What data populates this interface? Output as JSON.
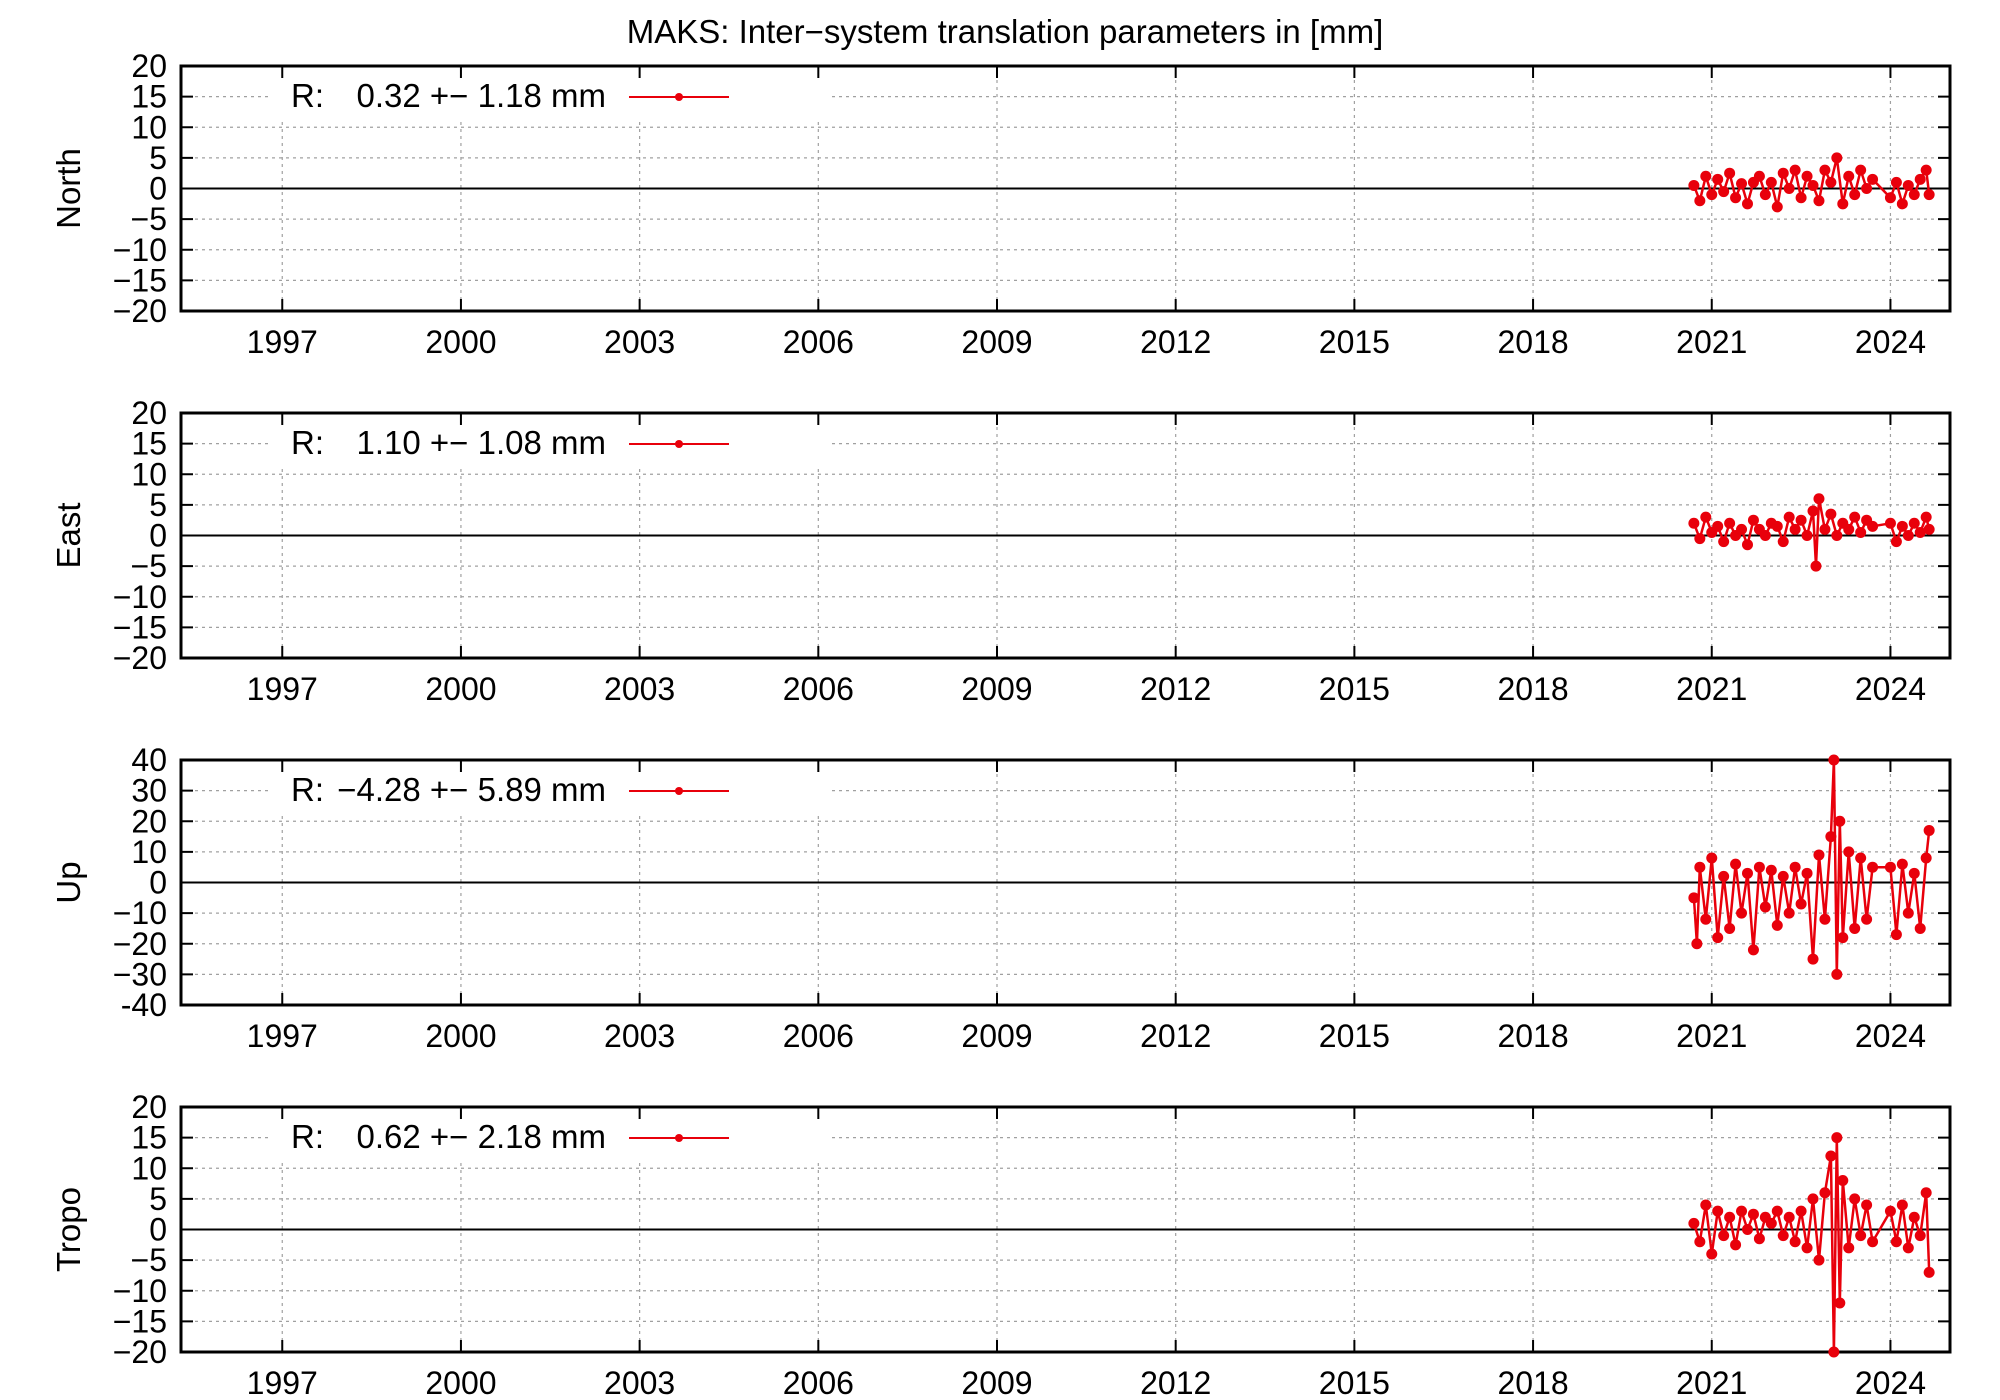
{
  "chart_data": {
    "type": "line",
    "title": "MAKS: Inter−system translation parameters in [mm]",
    "xlim": [
      1995.3,
      2025.0
    ],
    "xticks": [
      1997,
      2000,
      2003,
      2006,
      2009,
      2012,
      2015,
      2018,
      2021,
      2024
    ],
    "xtick_labels": [
      "1997",
      "2000",
      "2003",
      "2006",
      "2009",
      "2012",
      "2015",
      "2018",
      "2021",
      "2024"
    ],
    "series_color": "#e8000b",
    "zero_line_color": "#000000",
    "grid_color": "#a0a0a0",
    "grid": true,
    "legend_position": "top-left",
    "panels": [
      {
        "ylabel": "North",
        "ylim": [
          -20,
          20
        ],
        "yticks": [
          20,
          15,
          10,
          5,
          0,
          -5,
          -10,
          -15,
          -20
        ],
        "ytick_labels": [
          "20",
          "15",
          "10",
          "5",
          "0",
          "−5",
          "−10",
          "−15",
          "−20"
        ],
        "legend_prefix": "R:",
        "legend_stats": "0.32 +− 1.18 mm",
        "series": [
          {
            "x": [
              2020.7,
              2020.8,
              2020.9,
              2021.0,
              2021.1,
              2021.2,
              2021.3,
              2021.4,
              2021.5,
              2021.6,
              2021.7,
              2021.8,
              2021.9,
              2022.0,
              2022.1,
              2022.2,
              2022.3,
              2022.4,
              2022.5,
              2022.6,
              2022.7,
              2022.8,
              2022.9,
              2023.0,
              2023.1,
              2023.2,
              2023.3,
              2023.4,
              2023.5,
              2023.6,
              2023.7,
              2024.0,
              2024.1,
              2024.2,
              2024.3,
              2024.4,
              2024.5,
              2024.6,
              2024.65
            ],
            "y": [
              0.5,
              -2,
              2,
              -1,
              1.5,
              -0.5,
              2.5,
              -1.5,
              0.8,
              -2.5,
              1,
              2,
              -1,
              1,
              -3,
              2.5,
              0,
              3,
              -1.5,
              2,
              0.5,
              -2,
              3,
              1,
              5,
              -2.5,
              2,
              -1,
              3,
              0,
              1.5,
              -1.5,
              1,
              -2.5,
              0.5,
              -1,
              1.5,
              3,
              -1
            ]
          }
        ]
      },
      {
        "ylabel": "East",
        "ylim": [
          -20,
          20
        ],
        "yticks": [
          20,
          15,
          10,
          5,
          0,
          -5,
          -10,
          -15,
          -20
        ],
        "ytick_labels": [
          "20",
          "15",
          "10",
          "5",
          "0",
          "−5",
          "−10",
          "−15",
          "−20"
        ],
        "legend_prefix": "R:",
        "legend_stats": "1.10 +− 1.08 mm",
        "series": [
          {
            "x": [
              2020.7,
              2020.8,
              2020.9,
              2021.0,
              2021.1,
              2021.2,
              2021.3,
              2021.4,
              2021.5,
              2021.6,
              2021.7,
              2021.8,
              2021.9,
              2022.0,
              2022.1,
              2022.2,
              2022.3,
              2022.4,
              2022.5,
              2022.6,
              2022.7,
              2022.75,
              2022.8,
              2022.9,
              2023.0,
              2023.1,
              2023.2,
              2023.3,
              2023.4,
              2023.5,
              2023.6,
              2023.7,
              2024.0,
              2024.1,
              2024.2,
              2024.3,
              2024.4,
              2024.5,
              2024.6,
              2024.65
            ],
            "y": [
              2,
              -0.5,
              3,
              0.5,
              1.5,
              -1,
              2,
              0,
              1,
              -1.5,
              2.5,
              1,
              0,
              2,
              1.5,
              -1,
              3,
              1,
              2.5,
              0,
              4,
              -5,
              6,
              1,
              3.5,
              0,
              2,
              1,
              3,
              0.5,
              2.5,
              1.5,
              2,
              -1,
              1.5,
              0,
              2,
              0.5,
              3,
              1
            ]
          }
        ]
      },
      {
        "ylabel": "Up",
        "ylim": [
          -40,
          40
        ],
        "yticks": [
          40,
          30,
          20,
          10,
          0,
          -10,
          -20,
          -30,
          -40
        ],
        "ytick_labels": [
          "40",
          "30",
          "20",
          "10",
          "0",
          "−10",
          "−20",
          "−30",
          "-40"
        ],
        "legend_prefix": "R:",
        "legend_stats": "−4.28 +− 5.89 mm",
        "series": [
          {
            "x": [
              2020.7,
              2020.75,
              2020.8,
              2020.9,
              2021.0,
              2021.1,
              2021.2,
              2021.3,
              2021.4,
              2021.5,
              2021.6,
              2021.7,
              2021.8,
              2021.9,
              2022.0,
              2022.1,
              2022.2,
              2022.3,
              2022.4,
              2022.5,
              2022.6,
              2022.7,
              2022.8,
              2022.9,
              2023.0,
              2023.05,
              2023.1,
              2023.15,
              2023.2,
              2023.3,
              2023.4,
              2023.5,
              2023.6,
              2023.7,
              2024.0,
              2024.1,
              2024.2,
              2024.3,
              2024.4,
              2024.5,
              2024.6,
              2024.65
            ],
            "y": [
              -5,
              -20,
              5,
              -12,
              8,
              -18,
              2,
              -15,
              6,
              -10,
              3,
              -22,
              5,
              -8,
              4,
              -14,
              2,
              -10,
              5,
              -7,
              3,
              -25,
              9,
              -12,
              15,
              40,
              -30,
              20,
              -18,
              10,
              -15,
              8,
              -12,
              5,
              5,
              -17,
              6,
              -10,
              3,
              -15,
              8,
              17
            ]
          }
        ]
      },
      {
        "ylabel": "Tropo",
        "ylim": [
          -20,
          20
        ],
        "yticks": [
          20,
          15,
          10,
          5,
          0,
          -5,
          -10,
          -15,
          -20
        ],
        "ytick_labels": [
          "20",
          "15",
          "10",
          "5",
          "0",
          "−5",
          "−10",
          "−15",
          "−20"
        ],
        "legend_prefix": "R:",
        "legend_stats": "0.62 +− 2.18 mm",
        "series": [
          {
            "x": [
              2020.7,
              2020.8,
              2020.9,
              2021.0,
              2021.1,
              2021.2,
              2021.3,
              2021.4,
              2021.5,
              2021.6,
              2021.7,
              2021.8,
              2021.9,
              2022.0,
              2022.1,
              2022.2,
              2022.3,
              2022.4,
              2022.5,
              2022.6,
              2022.7,
              2022.8,
              2022.9,
              2023.0,
              2023.05,
              2023.1,
              2023.15,
              2023.2,
              2023.3,
              2023.4,
              2023.5,
              2023.6,
              2023.7,
              2024.0,
              2024.1,
              2024.2,
              2024.3,
              2024.4,
              2024.5,
              2024.6,
              2024.65
            ],
            "y": [
              1,
              -2,
              4,
              -4,
              3,
              -1,
              2,
              -2.5,
              3,
              0,
              2.5,
              -1.5,
              2,
              1,
              3,
              -1,
              2,
              -2,
              3,
              -3,
              5,
              -5,
              6,
              12,
              -20,
              15,
              -12,
              8,
              -3,
              5,
              -1,
              4,
              -2,
              3,
              -2,
              4,
              -3,
              2,
              -1,
              6,
              -7
            ]
          }
        ]
      }
    ]
  }
}
